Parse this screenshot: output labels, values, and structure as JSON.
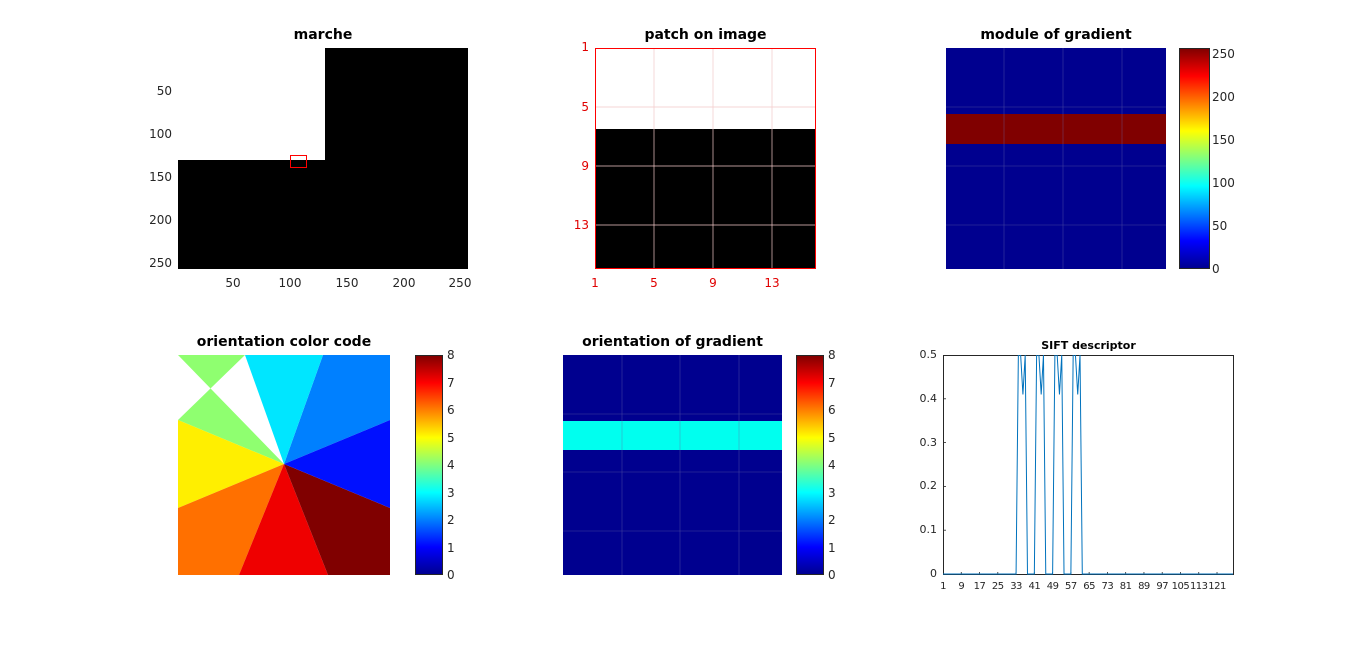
{
  "colors": {
    "patch_red": "#ff0000",
    "jet_dark_blue": "#00008f",
    "jet_dark_red": "#800000",
    "jet_cyan": "#00ffef",
    "line_blue": "#0072bd",
    "white": "#ffffff",
    "black": "#000000"
  },
  "chart_data": [
    {
      "id": "marche",
      "type": "heatmap",
      "title": "marche",
      "description_visible": "binary step image, white top-left block, black elsewhere, red rectangle marks the patch",
      "xlim": [
        1,
        256
      ],
      "ylim": [
        1,
        256
      ],
      "x_ticks": [
        "50",
        "100",
        "150",
        "200",
        "250"
      ],
      "y_ticks": [
        "50",
        "100",
        "150",
        "200",
        "250"
      ],
      "x_tick_values": [
        50,
        100,
        150,
        200,
        250
      ],
      "y_tick_values": [
        50,
        100,
        150,
        200,
        250
      ],
      "white_region": {
        "x": [
          1,
          128
        ],
        "y": [
          1,
          128
        ]
      },
      "patch_box": {
        "x": [
          98,
          113
        ],
        "y": [
          121,
          136
        ]
      },
      "colormap": "gray"
    },
    {
      "id": "patch",
      "type": "heatmap",
      "title": "patch on image",
      "x_ticks": [
        "1",
        "5",
        "9",
        "13"
      ],
      "y_ticks": [
        "1",
        "5",
        "9",
        "13"
      ],
      "x_tick_values": [
        1,
        5,
        9,
        13
      ],
      "y_tick_values": [
        1,
        5,
        9,
        13
      ],
      "xlim": [
        1,
        16
      ],
      "ylim": [
        1,
        16
      ],
      "white_rows": [
        1,
        6.5
      ],
      "black_rows": [
        6.5,
        16
      ],
      "grid": true,
      "axis_color": "red"
    },
    {
      "id": "module",
      "type": "heatmap",
      "title": "module of gradient",
      "xlim": [
        1,
        16
      ],
      "ylim": [
        1,
        16
      ],
      "band_rows": [
        5.5,
        7.5
      ],
      "band_value": 255,
      "background_value": 0,
      "grid": true,
      "colorbar": {
        "ticks": [
          "0",
          "50",
          "100",
          "150",
          "200",
          "250"
        ],
        "tick_values": [
          0,
          50,
          100,
          150,
          200,
          250
        ],
        "range": [
          0,
          255
        ]
      }
    },
    {
      "id": "orient_code",
      "type": "heatmap",
      "title": "orientation color code",
      "description_visible": "eight angular sectors colored by orientation bin",
      "sectors": [
        {
          "bin": 1,
          "color": "#0080ff"
        },
        {
          "bin": 2,
          "color": "#00e6ff"
        },
        {
          "bin": 3,
          "color": "#8fff70"
        },
        {
          "bin": 4,
          "color": "#ffef00"
        },
        {
          "bin": 5,
          "color": "#ff7000"
        },
        {
          "bin": 6,
          "color": "#ef0000"
        },
        {
          "bin": 7,
          "color": "#800000"
        },
        {
          "bin": 8,
          "color": "#0010ff"
        }
      ],
      "colorbar": {
        "ticks": [
          "0",
          "1",
          "2",
          "3",
          "4",
          "5",
          "6",
          "7",
          "8"
        ],
        "tick_values": [
          0,
          1,
          2,
          3,
          4,
          5,
          6,
          7,
          8
        ],
        "range": [
          0,
          8
        ]
      }
    },
    {
      "id": "orient_grad",
      "type": "heatmap",
      "title": "orientation of gradient",
      "xlim": [
        1,
        16
      ],
      "ylim": [
        1,
        16
      ],
      "band_rows": [
        5.5,
        7.5
      ],
      "band_value": 3,
      "background_value": 0,
      "grid": true,
      "colorbar": {
        "ticks": [
          "0",
          "1",
          "2",
          "3",
          "4",
          "5",
          "6",
          "7",
          "8"
        ],
        "tick_values": [
          0,
          1,
          2,
          3,
          4,
          5,
          6,
          7,
          8
        ],
        "range": [
          0,
          8
        ]
      }
    },
    {
      "id": "sift",
      "type": "line",
      "title": "SIFT descriptor",
      "xlim": [
        1,
        128
      ],
      "ylim": [
        0,
        0.5
      ],
      "x_ticks": [
        "1",
        "9",
        "17",
        "25",
        "33",
        "41",
        "49",
        "57",
        "65",
        "73",
        "81",
        "89",
        "97",
        "105",
        "113",
        "121"
      ],
      "x_tick_values": [
        1,
        9,
        17,
        25,
        33,
        41,
        49,
        57,
        65,
        73,
        81,
        89,
        97,
        105,
        113,
        121
      ],
      "y_ticks": [
        "0",
        "0.1",
        "0.2",
        "0.3",
        "0.4",
        "0.5"
      ],
      "y_tick_values": [
        0,
        0.1,
        0.2,
        0.3,
        0.4,
        0.5
      ],
      "series": [
        {
          "x": [
            1,
            33,
            34,
            35,
            36,
            37,
            38,
            41,
            42,
            43,
            44,
            45,
            46,
            49,
            50,
            51,
            52,
            53,
            54,
            57,
            58,
            59,
            60,
            61,
            62,
            128
          ],
          "values": [
            0,
            0,
            0.5,
            0.5,
            0.41,
            0.5,
            0,
            0,
            0.5,
            0.5,
            0.41,
            0.5,
            0,
            0,
            0.5,
            0.5,
            0.41,
            0.5,
            0,
            0,
            0.5,
            0.5,
            0.41,
            0.5,
            0,
            0
          ]
        }
      ]
    }
  ]
}
